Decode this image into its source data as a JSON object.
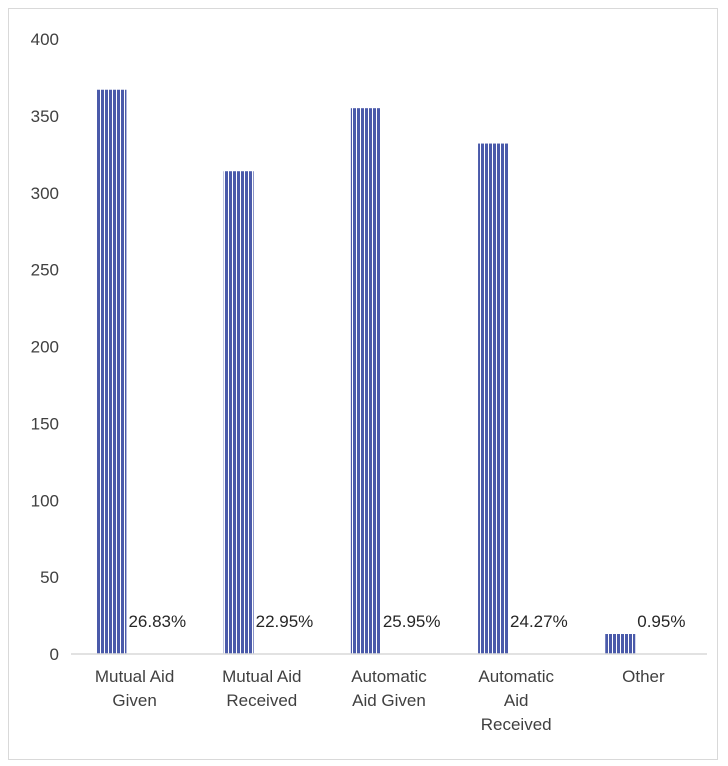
{
  "chart_data": {
    "type": "bar",
    "title": "",
    "xlabel": "",
    "ylabel": "",
    "ylim": [
      0,
      400
    ],
    "y_ticks": [
      0,
      50,
      100,
      150,
      200,
      250,
      300,
      350,
      400
    ],
    "categories": [
      [
        "Mutual Aid",
        "Given"
      ],
      [
        "Mutual Aid",
        "Received"
      ],
      [
        "Automatic",
        "Aid Given"
      ],
      [
        "Automatic",
        "Aid",
        "Received"
      ],
      [
        "Other"
      ]
    ],
    "values": [
      367,
      314,
      355,
      332,
      13
    ],
    "data_labels": [
      "26.83%",
      "22.95%",
      "25.95%",
      "24.27%",
      "0.95%"
    ],
    "grid": false,
    "bar_color": "#4a5aaa",
    "bar_stripe_color": "#ffffff"
  }
}
